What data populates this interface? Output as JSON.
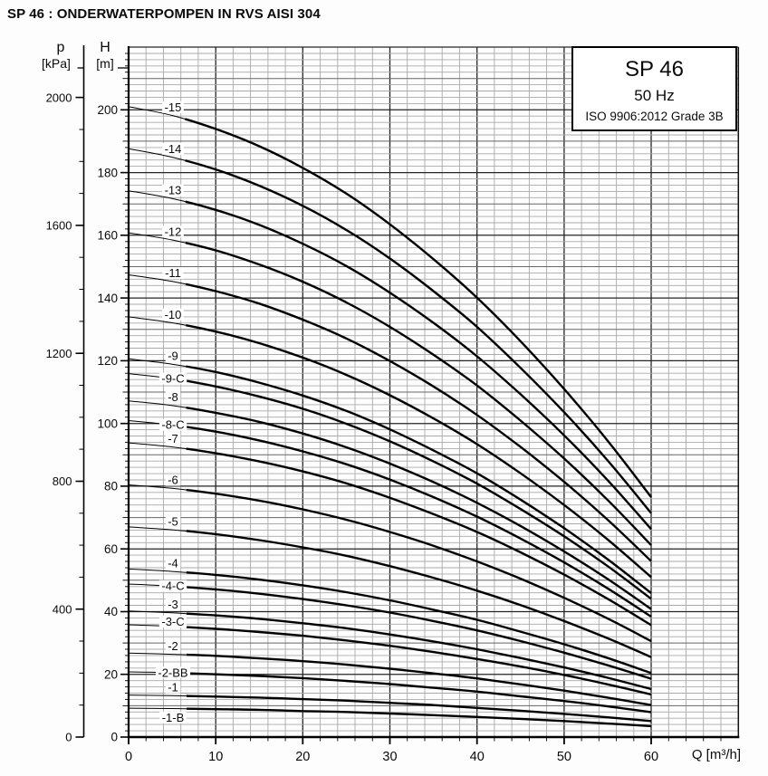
{
  "page_title": "SP 46 : ONDERWATERPOMPEN IN RVS AISI 304",
  "legend": {
    "model": "SP 46",
    "frequency": "50 Hz",
    "standard": "ISO 9906:2012 Grade 3B"
  },
  "axes_units": {
    "pressure_symbol": "p",
    "pressure_unit": "[kPa]",
    "head_symbol": "H",
    "head_unit": "[m]"
  },
  "colors": {
    "curve": "#000000",
    "axis": "#000000",
    "grid_minor": "#aaaaaa",
    "grid_medium": "#666666",
    "grid_major": "#252525",
    "label_text": "#0a0a0a",
    "background": "#fdfdfd",
    "legend_background": "#ffffff"
  },
  "chart_data": {
    "type": "line",
    "title": "SP 46 50 Hz pump performance curves (head vs. flow)",
    "xlabel": "Q [m³/h]",
    "ylabel": "H [m]",
    "legend_position": "top-right",
    "grid": true,
    "x_axis": {
      "label": "Q [m³/h]",
      "min": 0,
      "max": 70,
      "minor_step": 2,
      "major_step": 10,
      "tick_labels": [
        0,
        10,
        20,
        30,
        40,
        50,
        60
      ]
    },
    "y_axis_head": {
      "label": "H [m]",
      "min": 0,
      "max": 220,
      "minor_step": 2,
      "medium_step": 10,
      "major_step": 20,
      "tick_labels": [
        0,
        20,
        40,
        60,
        80,
        100,
        120,
        140,
        160,
        180,
        200
      ]
    },
    "y_axis_pressure": {
      "label": "p [kPa]",
      "min": 0,
      "max": 2000,
      "minor_step": 100,
      "major_step": 400,
      "m_per_kpa": 0.101972,
      "tick_labels": [
        0,
        400,
        800,
        1200,
        1600,
        2000
      ]
    },
    "flow_values": [
      0,
      5,
      10,
      15,
      20,
      25,
      30,
      35,
      40,
      45,
      50,
      55,
      60
    ],
    "series": [
      {
        "label": "-15",
        "label_placement": "above",
        "heads_m": [
          201.0,
          198.2,
          193.9,
          188.4,
          181.5,
          173.3,
          163.5,
          152.4,
          140.1,
          126.2,
          111.0,
          94.5,
          76.5
        ]
      },
      {
        "label": "-14",
        "label_placement": "above",
        "heads_m": [
          187.6,
          184.9,
          181.0,
          175.8,
          169.4,
          161.7,
          152.6,
          142.2,
          130.8,
          117.7,
          103.6,
          88.2,
          71.4
        ]
      },
      {
        "label": "-13",
        "label_placement": "above",
        "heads_m": [
          174.2,
          171.7,
          168.1,
          163.3,
          157.3,
          150.2,
          141.7,
          132.1,
          121.4,
          109.3,
          96.2,
          81.9,
          66.3
        ]
      },
      {
        "label": "-12",
        "label_placement": "above",
        "heads_m": [
          160.8,
          158.5,
          155.2,
          150.7,
          145.2,
          138.6,
          130.8,
          121.9,
          112.1,
          100.9,
          88.8,
          75.6,
          61.2
        ]
      },
      {
        "label": "-11",
        "label_placement": "above",
        "heads_m": [
          147.4,
          145.3,
          142.2,
          138.2,
          133.1,
          127.1,
          119.9,
          111.8,
          102.7,
          92.5,
          81.4,
          69.3,
          56.1
        ]
      },
      {
        "label": "-10",
        "label_placement": "above",
        "heads_m": [
          134.0,
          132.1,
          129.3,
          125.6,
          121.0,
          115.5,
          109.0,
          101.6,
          93.4,
          84.1,
          74.0,
          63.0,
          51.0
        ]
      },
      {
        "label": "-9",
        "label_placement": "above",
        "heads_m": [
          120.6,
          118.9,
          116.4,
          113.0,
          108.9,
          104.0,
          98.1,
          91.4,
          84.1,
          75.7,
          66.6,
          56.7,
          45.9
        ]
      },
      {
        "label": "-9-C",
        "label_placement": "inline",
        "heads_m": [
          115.9,
          114.3,
          111.8,
          108.6,
          104.7,
          99.9,
          94.3,
          87.9,
          80.8,
          72.7,
          64.0,
          54.5,
          44.1
        ]
      },
      {
        "label": "-8",
        "label_placement": "above",
        "heads_m": [
          107.2,
          105.7,
          103.4,
          100.5,
          96.8,
          92.4,
          87.2,
          81.3,
          74.7,
          67.3,
          59.2,
          50.4,
          40.8
        ]
      },
      {
        "label": "-8-C",
        "label_placement": "inline",
        "heads_m": [
          100.9,
          99.5,
          97.4,
          94.6,
          91.1,
          87.0,
          82.1,
          76.5,
          70.3,
          63.3,
          55.7,
          47.4,
          38.4
        ]
      },
      {
        "label": "-7",
        "label_placement": "above",
        "heads_m": [
          93.8,
          92.5,
          90.5,
          87.9,
          84.7,
          80.9,
          76.3,
          71.1,
          65.4,
          58.9,
          51.8,
          44.1,
          35.7
        ]
      },
      {
        "label": "-6",
        "label_placement": "above",
        "heads_m": [
          80.4,
          79.3,
          77.6,
          75.4,
          72.6,
          69.3,
          65.4,
          61.0,
          56.0,
          50.5,
          44.4,
          37.8,
          30.6
        ]
      },
      {
        "label": "-5",
        "label_placement": "above",
        "heads_m": [
          67.0,
          66.1,
          64.7,
          62.8,
          60.5,
          57.8,
          54.5,
          50.8,
          46.7,
          42.1,
          37.0,
          31.5,
          25.5
        ]
      },
      {
        "label": "-4",
        "label_placement": "above",
        "heads_m": [
          53.6,
          52.8,
          51.7,
          50.2,
          48.4,
          46.2,
          43.6,
          40.6,
          37.4,
          33.6,
          29.6,
          25.2,
          20.4
        ]
      },
      {
        "label": "-4-C",
        "label_placement": "inline",
        "heads_m": [
          48.8,
          48.1,
          47.1,
          45.7,
          44.0,
          42.0,
          39.7,
          37.0,
          34.0,
          30.6,
          26.9,
          22.9,
          18.6
        ]
      },
      {
        "label": "-3",
        "label_placement": "above",
        "heads_m": [
          40.2,
          39.6,
          38.8,
          37.7,
          36.3,
          34.7,
          32.7,
          30.5,
          28.0,
          25.2,
          22.2,
          18.9,
          15.3
        ]
      },
      {
        "label": "-3-C",
        "label_placement": "inline-high",
        "heads_m": [
          35.8,
          35.3,
          34.5,
          33.5,
          32.3,
          30.8,
          29.1,
          27.1,
          24.9,
          22.5,
          19.8,
          16.8,
          13.6
        ]
      },
      {
        "label": "-2",
        "label_placement": "above",
        "heads_m": [
          26.8,
          26.4,
          25.9,
          25.1,
          24.2,
          23.1,
          21.8,
          20.3,
          18.7,
          16.8,
          14.8,
          12.6,
          10.2
        ]
      },
      {
        "label": "-2-BB",
        "label_placement": "inline",
        "heads_m": [
          20.8,
          20.5,
          20.0,
          19.5,
          18.8,
          17.9,
          16.9,
          15.7,
          14.5,
          13.0,
          11.5,
          9.8,
          7.9
        ]
      },
      {
        "label": "-1",
        "label_placement": "above",
        "heads_m": [
          13.4,
          13.2,
          12.9,
          12.6,
          12.1,
          11.6,
          10.9,
          10.2,
          9.3,
          8.4,
          7.4,
          6.3,
          5.1
        ]
      },
      {
        "label": "-1-B",
        "label_placement": "below",
        "heads_m": [
          9.2,
          9.1,
          8.9,
          8.7,
          8.3,
          8.0,
          7.5,
          7.0,
          6.4,
          5.8,
          5.1,
          4.3,
          3.5
        ]
      }
    ]
  }
}
